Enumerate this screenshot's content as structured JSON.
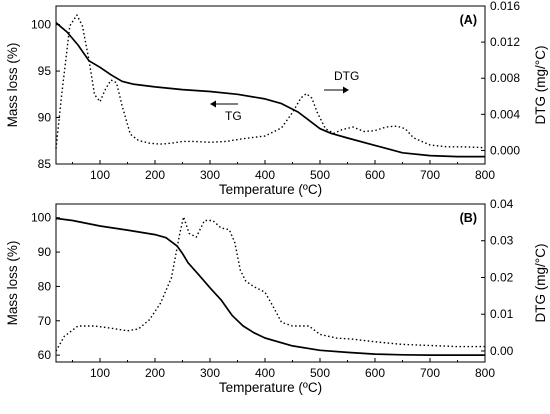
{
  "chart_data": [
    {
      "type": "line",
      "panel_label": "(A)",
      "xlabel": "Temperature (ºC)",
      "ylabel_left": "Mass loss (%)",
      "ylabel_right": "DTG (mg/°C)",
      "xlim": [
        20,
        800
      ],
      "ylim_left": [
        85,
        102
      ],
      "ylim_right": [
        -0.0015,
        0.016
      ],
      "x_ticks": [
        100,
        200,
        300,
        400,
        500,
        600,
        700,
        800
      ],
      "y_ticks_left": [
        85,
        90,
        95,
        100
      ],
      "y_ticks_right": [
        "0.000",
        "0.004",
        "0.008",
        "0.012",
        "0.016"
      ],
      "annotations": [
        {
          "text": "DTG",
          "arrow_to_series": "DTG",
          "direction": "right"
        },
        {
          "text": "TG",
          "arrow_to_series": "TG",
          "direction": "left"
        }
      ],
      "series": [
        {
          "name": "TG",
          "axis": "left",
          "style": "solid",
          "x": [
            20,
            40,
            60,
            80,
            100,
            120,
            140,
            160,
            200,
            250,
            300,
            350,
            400,
            430,
            460,
            480,
            500,
            520,
            550,
            600,
            650,
            700,
            750,
            800
          ],
          "y": [
            100.2,
            99.2,
            97.8,
            96.1,
            95.4,
            94.6,
            93.9,
            93.6,
            93.3,
            93.0,
            92.8,
            92.5,
            92.0,
            91.5,
            90.6,
            89.7,
            88.8,
            88.3,
            87.8,
            87.0,
            86.2,
            85.9,
            85.8,
            85.8
          ]
        },
        {
          "name": "DTG",
          "axis": "right",
          "style": "dotted",
          "x": [
            20,
            30,
            45,
            58,
            68,
            80,
            90,
            100,
            110,
            120,
            130,
            140,
            155,
            170,
            190,
            210,
            230,
            250,
            270,
            300,
            330,
            360,
            400,
            430,
            450,
            465,
            475,
            485,
            495,
            510,
            525,
            540,
            560,
            580,
            600,
            620,
            640,
            655,
            670,
            700,
            730,
            760,
            800
          ],
          "y": [
            0.0002,
            0.006,
            0.0138,
            0.015,
            0.0138,
            0.01,
            0.0062,
            0.0054,
            0.0068,
            0.0078,
            0.0075,
            0.005,
            0.0018,
            0.0011,
            0.0008,
            0.0007,
            0.0008,
            0.001,
            0.001,
            0.0009,
            0.001,
            0.0013,
            0.0016,
            0.0025,
            0.0042,
            0.0058,
            0.0063,
            0.0058,
            0.0042,
            0.0024,
            0.0019,
            0.0023,
            0.0026,
            0.0021,
            0.0022,
            0.0026,
            0.0027,
            0.0024,
            0.0014,
            0.0006,
            0.0004,
            0.0004,
            0.0003
          ]
        }
      ]
    },
    {
      "type": "line",
      "panel_label": "(B)",
      "xlabel": "Temperature (ºC)",
      "ylabel_left": "Mass loss (%)",
      "ylabel_right": "DTG (mg/°C)",
      "xlim": [
        20,
        800
      ],
      "ylim_left": [
        58,
        104
      ],
      "ylim_right": [
        -0.003,
        0.04
      ],
      "x_ticks": [
        100,
        200,
        300,
        400,
        500,
        600,
        700,
        800
      ],
      "y_ticks_left": [
        60,
        70,
        80,
        90,
        100
      ],
      "y_ticks_right": [
        "0.00",
        "0.01",
        "0.02",
        "0.03",
        "0.04"
      ],
      "series": [
        {
          "name": "TG",
          "axis": "left",
          "style": "solid",
          "x": [
            20,
            50,
            100,
            150,
            200,
            220,
            240,
            250,
            260,
            280,
            300,
            320,
            340,
            360,
            380,
            400,
            450,
            500,
            550,
            600,
            650,
            700,
            750,
            800
          ],
          "y": [
            99.8,
            99.2,
            97.6,
            96.4,
            95.1,
            94.2,
            91.8,
            89.6,
            86.9,
            83.3,
            79.6,
            76.1,
            71.6,
            68.5,
            66.5,
            65.0,
            62.7,
            61.4,
            60.8,
            60.3,
            60.1,
            60.0,
            60.0,
            60.0
          ]
        },
        {
          "name": "DTG",
          "axis": "right",
          "style": "dotted",
          "x": [
            20,
            35,
            60,
            90,
            120,
            150,
            170,
            190,
            210,
            230,
            245,
            252,
            262,
            275,
            290,
            305,
            320,
            335,
            345,
            355,
            365,
            380,
            400,
            415,
            430,
            450,
            480,
            500,
            530,
            560,
            600,
            650,
            700,
            750,
            800
          ],
          "y": [
            0.0,
            0.004,
            0.0068,
            0.0068,
            0.0062,
            0.0055,
            0.006,
            0.0085,
            0.013,
            0.02,
            0.032,
            0.0365,
            0.032,
            0.031,
            0.0355,
            0.0355,
            0.0335,
            0.033,
            0.0295,
            0.022,
            0.019,
            0.0175,
            0.016,
            0.012,
            0.0078,
            0.0068,
            0.0068,
            0.0045,
            0.0035,
            0.0032,
            0.0025,
            0.0018,
            0.0015,
            0.0012,
            0.0012
          ]
        }
      ]
    }
  ]
}
